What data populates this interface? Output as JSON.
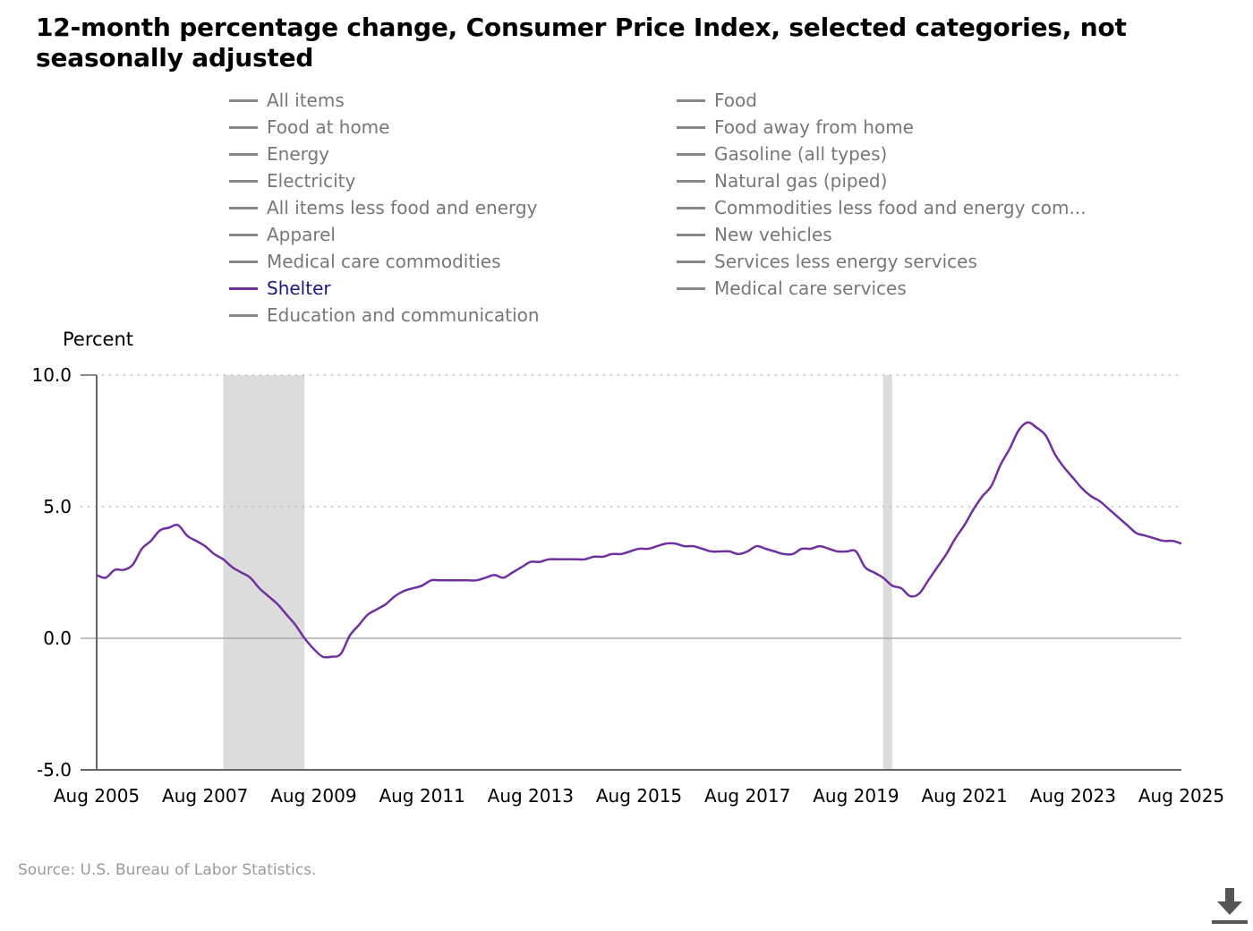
{
  "title": "12-month percentage change, Consumer Price Index, selected categories, not seasonally adjusted",
  "legend": [
    {
      "label": "All items",
      "active": false
    },
    {
      "label": "Food",
      "active": false
    },
    {
      "label": "Food at home",
      "active": false
    },
    {
      "label": "Food away from home",
      "active": false
    },
    {
      "label": "Energy",
      "active": false
    },
    {
      "label": "Gasoline (all types)",
      "active": false
    },
    {
      "label": "Electricity",
      "active": false
    },
    {
      "label": "Natural gas (piped)",
      "active": false
    },
    {
      "label": "All items less food and energy",
      "active": false
    },
    {
      "label": "Commodities less food and energy com...",
      "active": false
    },
    {
      "label": "Apparel",
      "active": false
    },
    {
      "label": "New vehicles",
      "active": false
    },
    {
      "label": "Medical care commodities",
      "active": false
    },
    {
      "label": "Services less energy services",
      "active": false
    },
    {
      "label": "Shelter",
      "active": true
    },
    {
      "label": "Medical care services",
      "active": false
    },
    {
      "label": "Education and communication",
      "active": false
    }
  ],
  "source": "Source: U.S. Bureau of Labor Statistics.",
  "download_icon": "download-icon",
  "colors": {
    "series": "#7030a0",
    "recession": "#dcdcdc",
    "inactive": "#888888"
  },
  "chart_data": {
    "type": "line",
    "ylabel": "Percent",
    "ylim": [
      -5,
      10
    ],
    "yticks": [
      "10.0",
      "5.0",
      "0.0",
      "-5.0"
    ],
    "xticks": [
      "Aug 2005",
      "Aug 2007",
      "Aug 2009",
      "Aug 2011",
      "Aug 2013",
      "Aug 2015",
      "Aug 2017",
      "Aug 2019",
      "Aug 2021",
      "Aug 2023",
      "Aug 2025"
    ],
    "recessions": [
      [
        "Dec 2007",
        "Jun 2009"
      ],
      [
        "Feb 2020",
        "Apr 2020"
      ]
    ],
    "series": [
      {
        "name": "Shelter",
        "points": [
          [
            "Aug 2005",
            2.4
          ],
          [
            "Oct 2005",
            2.3
          ],
          [
            "Dec 2005",
            2.6
          ],
          [
            "Feb 2006",
            2.6
          ],
          [
            "Apr 2006",
            2.8
          ],
          [
            "Jun 2006",
            3.4
          ],
          [
            "Aug 2006",
            3.7
          ],
          [
            "Oct 2006",
            4.1
          ],
          [
            "Dec 2006",
            4.2
          ],
          [
            "Feb 2007",
            4.3
          ],
          [
            "Apr 2007",
            3.9
          ],
          [
            "Jun 2007",
            3.7
          ],
          [
            "Aug 2007",
            3.5
          ],
          [
            "Oct 2007",
            3.2
          ],
          [
            "Dec 2007",
            3.0
          ],
          [
            "Feb 2008",
            2.7
          ],
          [
            "Apr 2008",
            2.5
          ],
          [
            "Jun 2008",
            2.3
          ],
          [
            "Aug 2008",
            1.9
          ],
          [
            "Oct 2008",
            1.6
          ],
          [
            "Dec 2008",
            1.3
          ],
          [
            "Feb 2009",
            0.9
          ],
          [
            "Apr 2009",
            0.5
          ],
          [
            "Jun 2009",
            0.0
          ],
          [
            "Aug 2009",
            -0.4
          ],
          [
            "Oct 2009",
            -0.7
          ],
          [
            "Dec 2009",
            -0.7
          ],
          [
            "Feb 2010",
            -0.6
          ],
          [
            "Apr 2010",
            0.1
          ],
          [
            "Jun 2010",
            0.5
          ],
          [
            "Aug 2010",
            0.9
          ],
          [
            "Oct 2010",
            1.1
          ],
          [
            "Dec 2010",
            1.3
          ],
          [
            "Feb 2011",
            1.6
          ],
          [
            "Apr 2011",
            1.8
          ],
          [
            "Jun 2011",
            1.9
          ],
          [
            "Aug 2011",
            2.0
          ],
          [
            "Oct 2011",
            2.2
          ],
          [
            "Dec 2011",
            2.2
          ],
          [
            "Feb 2012",
            2.2
          ],
          [
            "Apr 2012",
            2.2
          ],
          [
            "Jun 2012",
            2.2
          ],
          [
            "Aug 2012",
            2.2
          ],
          [
            "Oct 2012",
            2.3
          ],
          [
            "Dec 2012",
            2.4
          ],
          [
            "Feb 2013",
            2.3
          ],
          [
            "Apr 2013",
            2.5
          ],
          [
            "Jun 2013",
            2.7
          ],
          [
            "Aug 2013",
            2.9
          ],
          [
            "Oct 2013",
            2.9
          ],
          [
            "Dec 2013",
            3.0
          ],
          [
            "Feb 2014",
            3.0
          ],
          [
            "Apr 2014",
            3.0
          ],
          [
            "Jun 2014",
            3.0
          ],
          [
            "Aug 2014",
            3.0
          ],
          [
            "Oct 2014",
            3.1
          ],
          [
            "Dec 2014",
            3.1
          ],
          [
            "Feb 2015",
            3.2
          ],
          [
            "Apr 2015",
            3.2
          ],
          [
            "Jun 2015",
            3.3
          ],
          [
            "Aug 2015",
            3.4
          ],
          [
            "Oct 2015",
            3.4
          ],
          [
            "Dec 2015",
            3.5
          ],
          [
            "Feb 2016",
            3.6
          ],
          [
            "Apr 2016",
            3.6
          ],
          [
            "Jun 2016",
            3.5
          ],
          [
            "Aug 2016",
            3.5
          ],
          [
            "Oct 2016",
            3.4
          ],
          [
            "Dec 2016",
            3.3
          ],
          [
            "Feb 2017",
            3.3
          ],
          [
            "Apr 2017",
            3.3
          ],
          [
            "Jun 2017",
            3.2
          ],
          [
            "Aug 2017",
            3.3
          ],
          [
            "Oct 2017",
            3.5
          ],
          [
            "Dec 2017",
            3.4
          ],
          [
            "Feb 2018",
            3.3
          ],
          [
            "Apr 2018",
            3.2
          ],
          [
            "Jun 2018",
            3.2
          ],
          [
            "Aug 2018",
            3.4
          ],
          [
            "Oct 2018",
            3.4
          ],
          [
            "Dec 2018",
            3.5
          ],
          [
            "Feb 2019",
            3.4
          ],
          [
            "Apr 2019",
            3.3
          ],
          [
            "Jun 2019",
            3.3
          ],
          [
            "Aug 2019",
            3.3
          ],
          [
            "Oct 2019",
            2.7
          ],
          [
            "Dec 2019",
            2.5
          ],
          [
            "Feb 2020",
            2.3
          ],
          [
            "Apr 2020",
            2.0
          ],
          [
            "Jun 2020",
            1.9
          ],
          [
            "Aug 2020",
            1.6
          ],
          [
            "Oct 2020",
            1.7
          ],
          [
            "Dec 2020",
            2.2
          ],
          [
            "Feb 2021",
            2.7
          ],
          [
            "Apr 2021",
            3.2
          ],
          [
            "Jun 2021",
            3.8
          ],
          [
            "Aug 2021",
            4.3
          ],
          [
            "Oct 2021",
            4.9
          ],
          [
            "Dec 2021",
            5.4
          ],
          [
            "Feb 2022",
            5.8
          ],
          [
            "Apr 2022",
            6.6
          ],
          [
            "Jun 2022",
            7.2
          ],
          [
            "Aug 2022",
            7.9
          ],
          [
            "Oct 2022",
            8.2
          ],
          [
            "Dec 2022",
            8.0
          ],
          [
            "Feb 2023",
            7.7
          ],
          [
            "Apr 2023",
            7.0
          ],
          [
            "Jun 2023",
            6.5
          ],
          [
            "Aug 2023",
            6.1
          ],
          [
            "Oct 2023",
            5.7
          ],
          [
            "Dec 2023",
            5.4
          ],
          [
            "Feb 2024",
            5.2
          ],
          [
            "Apr 2024",
            4.9
          ],
          [
            "Jun 2024",
            4.6
          ],
          [
            "Aug 2024",
            4.3
          ],
          [
            "Oct 2024",
            4.0
          ],
          [
            "Dec 2024",
            3.9
          ],
          [
            "Feb 2025",
            3.8
          ],
          [
            "Apr 2025",
            3.7
          ],
          [
            "Jun 2025",
            3.7
          ],
          [
            "Aug 2025",
            3.6
          ]
        ]
      }
    ]
  }
}
